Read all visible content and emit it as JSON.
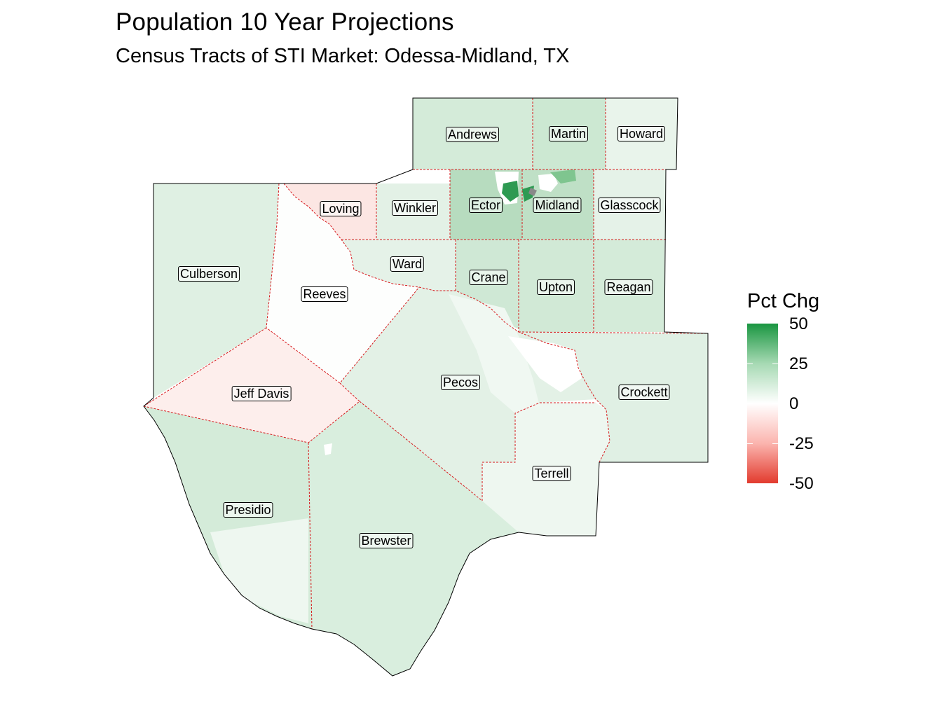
{
  "title": "Population 10 Year Projections",
  "subtitle": "Census Tracts of STI Market: Odessa-Midland, TX",
  "legend": {
    "title": "Pct Chg",
    "labels": [
      "50",
      "25",
      "0",
      "-25",
      "-50"
    ],
    "colors": {
      "high": "#1a9641",
      "mid": "#ffffff",
      "low": "#e23b2e"
    }
  },
  "counties": [
    {
      "key": "andrews",
      "label": "Andrews"
    },
    {
      "key": "martin",
      "label": "Martin"
    },
    {
      "key": "howard",
      "label": "Howard"
    },
    {
      "key": "loving",
      "label": "Loving"
    },
    {
      "key": "winkler",
      "label": "Winkler"
    },
    {
      "key": "ector",
      "label": "Ector"
    },
    {
      "key": "midland",
      "label": "Midland"
    },
    {
      "key": "glasscock",
      "label": "Glasscock"
    },
    {
      "key": "culberson",
      "label": "Culberson"
    },
    {
      "key": "ward",
      "label": "Ward"
    },
    {
      "key": "crane",
      "label": "Crane"
    },
    {
      "key": "upton",
      "label": "Upton"
    },
    {
      "key": "reagan",
      "label": "Reagan"
    },
    {
      "key": "reeves",
      "label": "Reeves"
    },
    {
      "key": "pecos",
      "label": "Pecos"
    },
    {
      "key": "crockett",
      "label": "Crockett"
    },
    {
      "key": "jeff_davis",
      "label": "Jeff Davis"
    },
    {
      "key": "terrell",
      "label": "Terrell"
    },
    {
      "key": "presidio",
      "label": "Presidio"
    },
    {
      "key": "brewster",
      "label": "Brewster"
    }
  ]
}
